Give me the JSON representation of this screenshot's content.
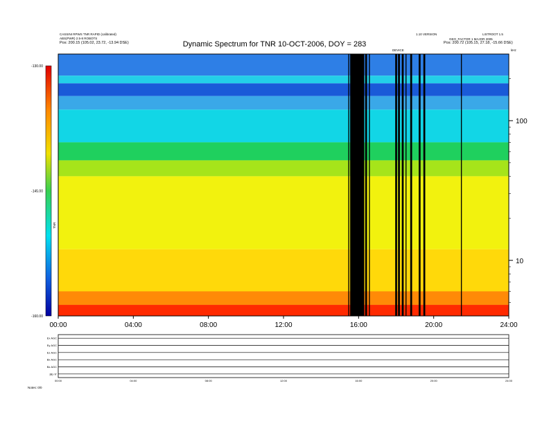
{
  "chart_data": {
    "type": "heatmap",
    "title": "Dynamic Spectrum for TNR 10-OCT-2006, DOY = 283",
    "header_left": {
      "line1": "CASSINI RPWS TNR RAPID (calibrated)",
      "line2": "ABS(PWR) 2.5-8 ROBOTS",
      "line3": "Pos:  200.15 (105.02, 23.72, -13.94 DSE)"
    },
    "header_right": {
      "line1": "1.10 VERSION",
      "line2": "LISTROOT 1.5",
      "line3": "GEO_FACTOR 1  MAJOR 2005",
      "line4": "Pos:  200.72 (105.15, 27.18, -15.66 DSE)"
    },
    "marker_label": "DEVICE",
    "colorbar": {
      "min": -160,
      "max": -130,
      "ticks": [
        "-130.00",
        "-145.00",
        "-160.00"
      ],
      "label": "TNR"
    },
    "x_axis": {
      "ticks": [
        "00:00",
        "04:00",
        "08:00",
        "12:00",
        "16:00",
        "20:00",
        "24:00"
      ],
      "range_hours": [
        0,
        24
      ]
    },
    "y_axis": {
      "scale": "log",
      "ticks": [
        "100",
        "10"
      ],
      "unit": "kHz",
      "range": [
        4,
        300
      ]
    },
    "spectral_bands": [
      {
        "from": 300,
        "to": 210,
        "color": "#2e7fe6"
      },
      {
        "from": 210,
        "to": 185,
        "color": "#23cfe8"
      },
      {
        "from": 185,
        "to": 150,
        "color": "#1a5ad8"
      },
      {
        "from": 150,
        "to": 120,
        "color": "#3aa8e8"
      },
      {
        "from": 120,
        "to": 70,
        "color": "#12d6e6"
      },
      {
        "from": 70,
        "to": 52,
        "color": "#1fd05e"
      },
      {
        "from": 52,
        "to": 40,
        "color": "#a6e41a"
      },
      {
        "from": 40,
        "to": 12,
        "color": "#f2f20e"
      },
      {
        "from": 12,
        "to": 6,
        "color": "#ffd90a"
      },
      {
        "from": 6,
        "to": 4.8,
        "color": "#ff8a07"
      },
      {
        "from": 4.8,
        "to": 4,
        "color": "#ff2a00"
      }
    ],
    "data_gaps_hours": [
      [
        15.45,
        15.5
      ],
      [
        15.55,
        16.3
      ],
      [
        16.35,
        16.45
      ],
      [
        16.55,
        16.6
      ],
      [
        17.95,
        18.05
      ],
      [
        18.1,
        18.2
      ],
      [
        18.3,
        18.4
      ],
      [
        18.5,
        18.55
      ],
      [
        18.75,
        18.85
      ],
      [
        19.2,
        19.3
      ],
      [
        19.45,
        19.55
      ],
      [
        21.45,
        21.5
      ]
    ],
    "lower_panel": {
      "channels": [
        "Ex AGC",
        "Ey AGC",
        "Ez AGC",
        "Bx AGC",
        "Bz AGC",
        "|B| nT"
      ],
      "x_ticks": [
        "00:00",
        "04:00",
        "08:00",
        "12:00",
        "16:00",
        "20:00",
        "24:00"
      ],
      "footer": "Notes:  0/0"
    }
  }
}
